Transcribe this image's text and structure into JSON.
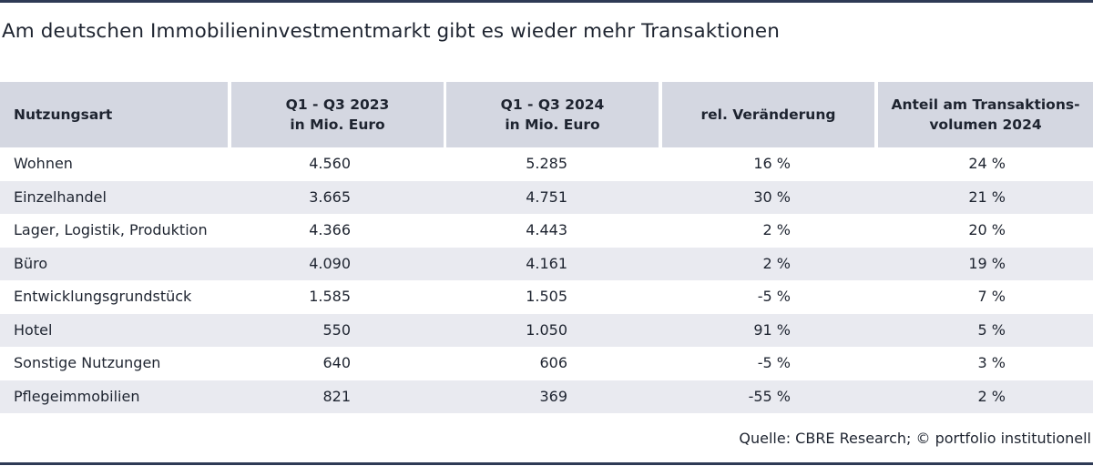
{
  "title": "Am deutschen Immobilieninvestmentmarkt gibt es wieder mehr Transaktionen",
  "source": "Quelle: CBRE Research; © portfolio institutionell",
  "colors": {
    "header_bg": "#d4d7e1",
    "row_alt_bg": "#e9eaf0",
    "rule": "#2e3a55"
  },
  "chart_data": {
    "type": "table",
    "title": "Am deutschen Immobilieninvestmentmarkt gibt es wieder mehr Transaktionen",
    "columns": [
      "Nutzungsart",
      "Q1 - Q3 2023\nin Mio. Euro",
      "Q1 - Q3 2024\nin Mio. Euro",
      "rel. Veränderung",
      "Anteil am Transaktions-\nvolumen 2024"
    ],
    "rows": [
      [
        "Wohnen",
        "4.560",
        "5.285",
        "16 %",
        "24 %"
      ],
      [
        "Einzelhandel",
        "3.665",
        "4.751",
        "30 %",
        "21 %"
      ],
      [
        "Lager, Logistik, Produktion",
        "4.366",
        "4.443",
        "2 %",
        "20 %"
      ],
      [
        "Büro",
        "4.090",
        "4.161",
        "2 %",
        "19 %"
      ],
      [
        "Entwicklungsgrundstück",
        "1.585",
        "1.505",
        "-5 %",
        "7 %"
      ],
      [
        "Hotel",
        "550",
        "1.050",
        "91 %",
        "5 %"
      ],
      [
        "Sonstige Nutzungen",
        "640",
        "606",
        "-5 %",
        "3 %"
      ],
      [
        "Pflegeimmobilien",
        "821",
        "369",
        "-55 %",
        "2 %"
      ]
    ],
    "source": "Quelle: CBRE Research; © portfolio institutionell"
  }
}
